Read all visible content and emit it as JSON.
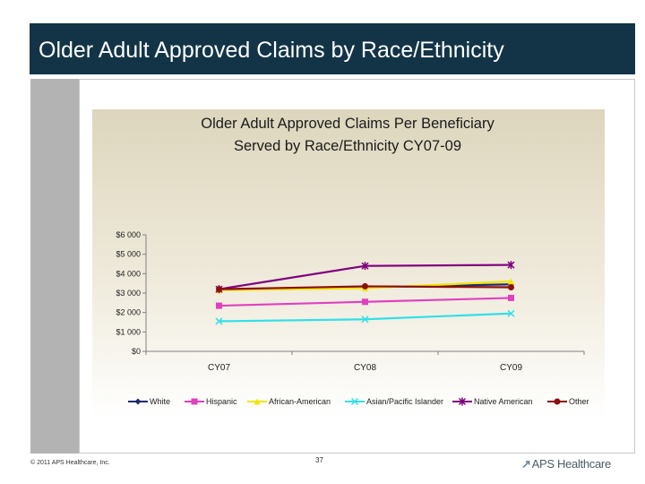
{
  "slide": {
    "title": "Older Adult Approved Claims by Race/Ethnicity",
    "footer": "© 2011 APS Healthcare, Inc.",
    "page_number": "37",
    "logo_text": "APS Healthcare"
  },
  "colors": {
    "title_bar": "#123446",
    "chart_bg": "#e9e4d2"
  },
  "chart_data": {
    "type": "line",
    "title_line1": "Older Adult Approved Claims Per Beneficiary",
    "title_line2": "Served by Race/Ethnicity CY07-09",
    "categories": [
      "CY07",
      "CY08",
      "CY09"
    ],
    "y_ticks": [
      "$0",
      "$1 000",
      "$2 000",
      "$3 000",
      "$4 000",
      "$5 000",
      "$6 000"
    ],
    "ylim": [
      0,
      6000
    ],
    "series": [
      {
        "name": "White",
        "values": [
          3200,
          3300,
          3450
        ],
        "color": "#1f2a6e",
        "marker": "diamond"
      },
      {
        "name": "Hispanic",
        "values": [
          2350,
          2550,
          2750
        ],
        "color": "#e040c0",
        "marker": "square"
      },
      {
        "name": "African-American",
        "values": [
          3150,
          3250,
          3600
        ],
        "color": "#f2e500",
        "marker": "triangle"
      },
      {
        "name": "Asian/Pacific Islander",
        "values": [
          1550,
          1650,
          1950
        ],
        "color": "#30e0e8",
        "marker": "x"
      },
      {
        "name": "Native American",
        "values": [
          3200,
          4400,
          4450
        ],
        "color": "#800080",
        "marker": "star"
      },
      {
        "name": "Other",
        "values": [
          3200,
          3350,
          3300
        ],
        "color": "#8b1010",
        "marker": "circle"
      }
    ]
  }
}
